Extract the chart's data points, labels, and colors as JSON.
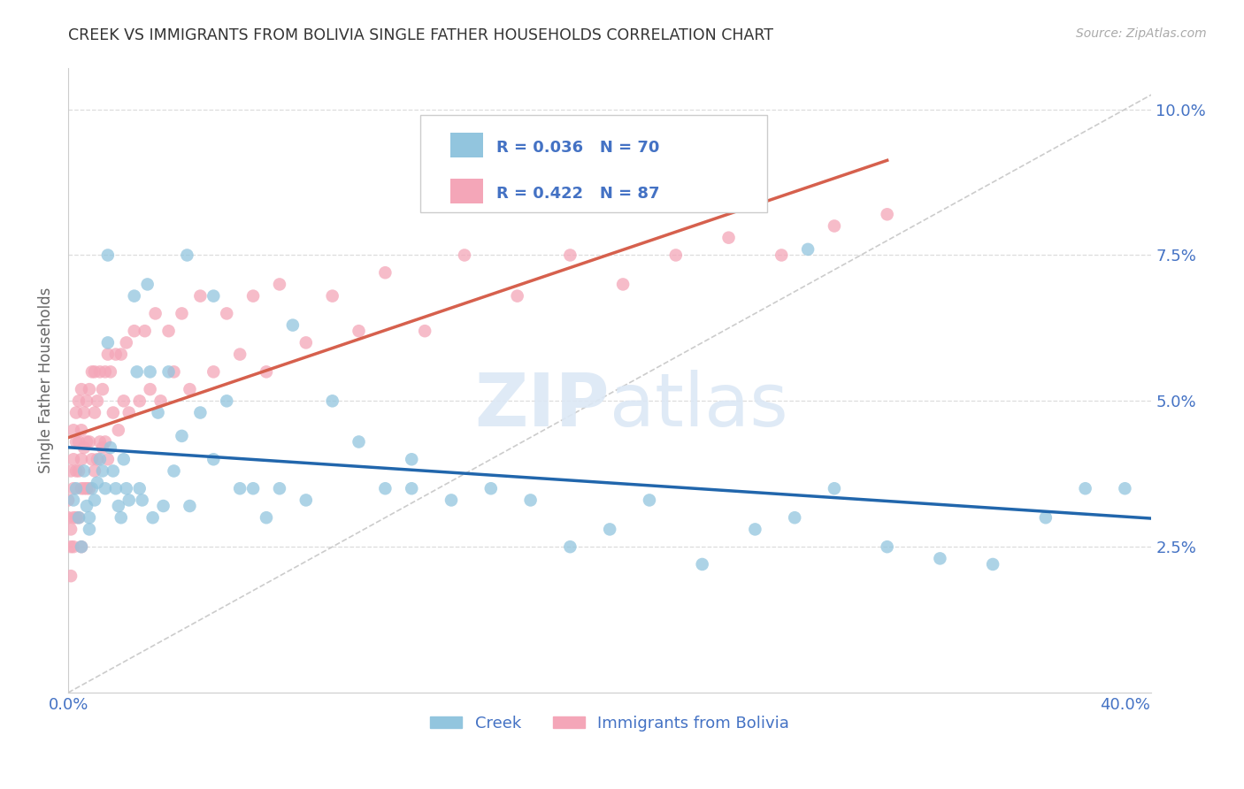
{
  "title": "CREEK VS IMMIGRANTS FROM BOLIVIA SINGLE FATHER HOUSEHOLDS CORRELATION CHART",
  "source": "Source: ZipAtlas.com",
  "ylabel": "Single Father Households",
  "watermark_zip": "ZIP",
  "watermark_atlas": "atlas",
  "legend_creek_R": "R = 0.036",
  "legend_creek_N": "N = 70",
  "legend_bolivia_R": "R = 0.422",
  "legend_bolivia_N": "N = 87",
  "creek_color": "#92c5de",
  "bolivia_color": "#f4a6b8",
  "creek_line_color": "#2166ac",
  "bolivia_line_color": "#d6604d",
  "diagonal_color": "#cccccc",
  "background_color": "#ffffff",
  "title_color": "#333333",
  "tick_color": "#4472c4",
  "legend_text_color": "#4472c4",
  "grid_color": "#dddddd",
  "creek_x": [
    0.002,
    0.003,
    0.004,
    0.005,
    0.006,
    0.007,
    0.008,
    0.008,
    0.009,
    0.01,
    0.011,
    0.012,
    0.013,
    0.014,
    0.015,
    0.016,
    0.017,
    0.018,
    0.019,
    0.02,
    0.021,
    0.022,
    0.023,
    0.025,
    0.026,
    0.027,
    0.028,
    0.03,
    0.031,
    0.032,
    0.034,
    0.036,
    0.038,
    0.04,
    0.043,
    0.046,
    0.05,
    0.055,
    0.06,
    0.065,
    0.07,
    0.075,
    0.08,
    0.09,
    0.1,
    0.11,
    0.12,
    0.13,
    0.145,
    0.16,
    0.175,
    0.19,
    0.205,
    0.22,
    0.24,
    0.26,
    0.275,
    0.29,
    0.31,
    0.33,
    0.35,
    0.37,
    0.385,
    0.4,
    0.015,
    0.045,
    0.055,
    0.085,
    0.13,
    0.28
  ],
  "creek_y": [
    0.033,
    0.035,
    0.03,
    0.025,
    0.038,
    0.032,
    0.03,
    0.028,
    0.035,
    0.033,
    0.036,
    0.04,
    0.038,
    0.035,
    0.06,
    0.042,
    0.038,
    0.035,
    0.032,
    0.03,
    0.04,
    0.035,
    0.033,
    0.068,
    0.055,
    0.035,
    0.033,
    0.07,
    0.055,
    0.03,
    0.048,
    0.032,
    0.055,
    0.038,
    0.044,
    0.032,
    0.048,
    0.04,
    0.05,
    0.035,
    0.035,
    0.03,
    0.035,
    0.033,
    0.05,
    0.043,
    0.035,
    0.035,
    0.033,
    0.035,
    0.033,
    0.025,
    0.028,
    0.033,
    0.022,
    0.028,
    0.03,
    0.035,
    0.025,
    0.023,
    0.022,
    0.03,
    0.035,
    0.035,
    0.075,
    0.075,
    0.068,
    0.063,
    0.04,
    0.076
  ],
  "bolivia_x": [
    0.0,
    0.0,
    0.001,
    0.001,
    0.001,
    0.001,
    0.002,
    0.002,
    0.002,
    0.002,
    0.002,
    0.003,
    0.003,
    0.003,
    0.003,
    0.004,
    0.004,
    0.004,
    0.004,
    0.005,
    0.005,
    0.005,
    0.005,
    0.005,
    0.006,
    0.006,
    0.006,
    0.007,
    0.007,
    0.007,
    0.008,
    0.008,
    0.008,
    0.009,
    0.009,
    0.01,
    0.01,
    0.01,
    0.011,
    0.011,
    0.012,
    0.012,
    0.013,
    0.013,
    0.014,
    0.014,
    0.015,
    0.015,
    0.016,
    0.017,
    0.018,
    0.019,
    0.02,
    0.021,
    0.022,
    0.023,
    0.025,
    0.027,
    0.029,
    0.031,
    0.033,
    0.035,
    0.038,
    0.04,
    0.043,
    0.046,
    0.05,
    0.055,
    0.06,
    0.065,
    0.07,
    0.075,
    0.08,
    0.09,
    0.1,
    0.11,
    0.12,
    0.135,
    0.15,
    0.17,
    0.19,
    0.21,
    0.23,
    0.25,
    0.27,
    0.29,
    0.31
  ],
  "bolivia_y": [
    0.033,
    0.03,
    0.038,
    0.028,
    0.025,
    0.02,
    0.045,
    0.04,
    0.035,
    0.03,
    0.025,
    0.048,
    0.043,
    0.038,
    0.03,
    0.05,
    0.043,
    0.038,
    0.03,
    0.052,
    0.045,
    0.04,
    0.035,
    0.025,
    0.048,
    0.042,
    0.035,
    0.05,
    0.043,
    0.035,
    0.052,
    0.043,
    0.035,
    0.055,
    0.04,
    0.055,
    0.048,
    0.038,
    0.05,
    0.04,
    0.055,
    0.043,
    0.052,
    0.042,
    0.055,
    0.043,
    0.058,
    0.04,
    0.055,
    0.048,
    0.058,
    0.045,
    0.058,
    0.05,
    0.06,
    0.048,
    0.062,
    0.05,
    0.062,
    0.052,
    0.065,
    0.05,
    0.062,
    0.055,
    0.065,
    0.052,
    0.068,
    0.055,
    0.065,
    0.058,
    0.068,
    0.055,
    0.07,
    0.06,
    0.068,
    0.062,
    0.072,
    0.062,
    0.075,
    0.068,
    0.075,
    0.07,
    0.075,
    0.078,
    0.075,
    0.08,
    0.082
  ],
  "xlim": [
    0.0,
    0.41
  ],
  "ylim": [
    0.0,
    0.107
  ],
  "x_tick_positions": [
    0.0,
    0.1,
    0.2,
    0.3,
    0.4
  ],
  "x_tick_labels": [
    "0.0%",
    "",
    "",
    "",
    "40.0%"
  ],
  "y_tick_positions": [
    0.0,
    0.025,
    0.05,
    0.075,
    0.1
  ],
  "y_tick_labels": [
    "",
    "2.5%",
    "5.0%",
    "7.5%",
    "10.0%"
  ]
}
